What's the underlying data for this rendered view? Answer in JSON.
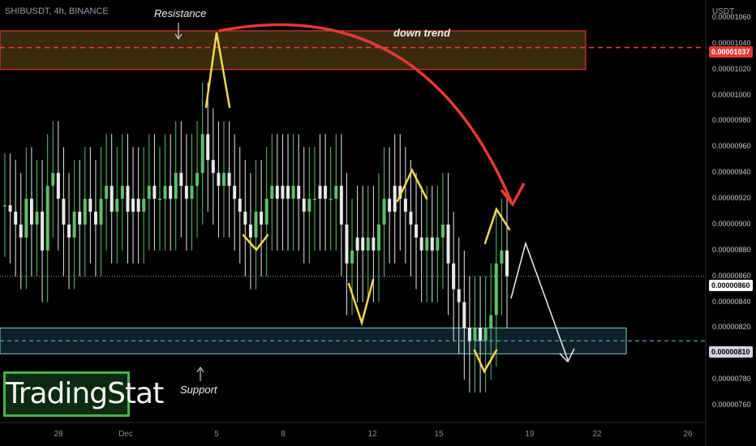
{
  "header": {
    "symbol": "SHIBUSDT, 4h, BINANCE",
    "unit": "USDT"
  },
  "annotations": {
    "resistance": "Resistance",
    "support": "Support",
    "down_trend": "down trend"
  },
  "brand": {
    "text": "TradingStat",
    "color": "#4caf50"
  },
  "price_badges": {
    "resistance": "0.00001037",
    "current": "0.00000860",
    "support": "0.00000810"
  },
  "colors": {
    "up": "#26a69a",
    "green": "#5fbf6a",
    "white": "#e8e8e8",
    "resistance_zone": "#ff3b3b",
    "support_zone": "#88c8d8",
    "arrow_red": "#e53935",
    "wave_yellow": "#f2d94e"
  },
  "chart_data": {
    "type": "candlestick",
    "x_ticks": [
      "28",
      "Dec",
      "5",
      "8",
      "12",
      "15",
      "19",
      "22",
      "26"
    ],
    "y_ticks": [
      "0.00001060",
      "0.00001040",
      "0.00001020",
      "0.00001000",
      "0.00000980",
      "0.00000960",
      "0.00000940",
      "0.00000920",
      "0.00000900",
      "0.00000880",
      "0.00000860",
      "0.00000840",
      "0.00000820",
      "0.00000800",
      "0.00000780",
      "0.00000760"
    ],
    "ylim": [
      7.5e-06,
      1.06e-05
    ],
    "resistance_zone": [
      1.02e-05,
      1.05e-05
    ],
    "support_zone": [
      8e-06,
      8.2e-06
    ],
    "current_price": 8.6e-06,
    "closes": [
      9.15e-06,
      9.1e-06,
      9e-06,
      8.9e-06,
      9.2e-06,
      9e-06,
      9.1e-06,
      8.8e-06,
      9.3e-06,
      9.4e-06,
      9.2e-06,
      9e-06,
      8.9e-06,
      9.1e-06,
      9e-06,
      9.2e-06,
      9.1e-06,
      9e-06,
      9.2e-06,
      9.3e-06,
      9.1e-06,
      9.2e-06,
      9.3e-06,
      9.1e-06,
      9.2e-06,
      9.1e-06,
      9.2e-06,
      9.3e-06,
      9.2e-06,
      9.2e-06,
      9.3e-06,
      9.2e-06,
      9.4e-06,
      9.3e-06,
      9.2e-06,
      9.3e-06,
      9.4e-06,
      9.7e-06,
      9.5e-06,
      9.4e-06,
      9.3e-06,
      9.4e-06,
      9.3e-06,
      9.2e-06,
      9.1e-06,
      9e-06,
      8.9e-06,
      9.1e-06,
      9e-06,
      9.2e-06,
      9.3e-06,
      9.2e-06,
      9.3e-06,
      9.2e-06,
      9.3e-06,
      9.2e-06,
      9.1e-06,
      9.2e-06,
      9.2e-06,
      9.3e-06,
      9.2e-06,
      9.2e-06,
      9.3e-06,
      9e-06,
      8.7e-06,
      8.8e-06,
      8.9e-06,
      8.8e-06,
      8.9e-06,
      8.8e-06,
      9e-06,
      9.2e-06,
      9.1e-06,
      9.3e-06,
      9.2e-06,
      9.1e-06,
      9e-06,
      8.9e-06,
      8.8e-06,
      8.9e-06,
      8.8e-06,
      8.9e-06,
      9e-06,
      8.7e-06,
      8.5e-06,
      8.4e-06,
      8.2e-06,
      8.1e-06,
      8.2e-06,
      8.1e-06,
      8.2e-06,
      8.3e-06,
      8.7e-06,
      8.8e-06,
      8.6e-06
    ]
  }
}
